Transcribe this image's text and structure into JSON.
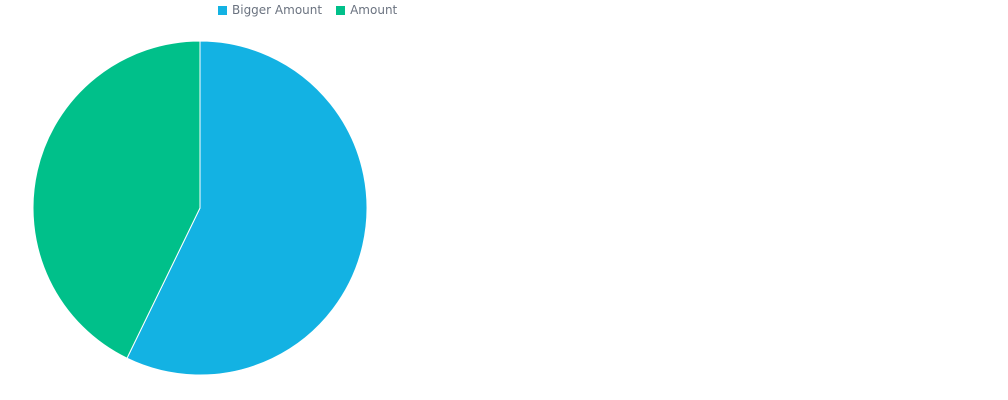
{
  "chart_data": {
    "type": "pie",
    "legend_position": "top-left",
    "series": [
      {
        "name": "Bigger Amount",
        "value": 57.2,
        "color": "#13b2e3"
      },
      {
        "name": "Amount",
        "value": 42.8,
        "color": "#00c08a"
      }
    ]
  }
}
